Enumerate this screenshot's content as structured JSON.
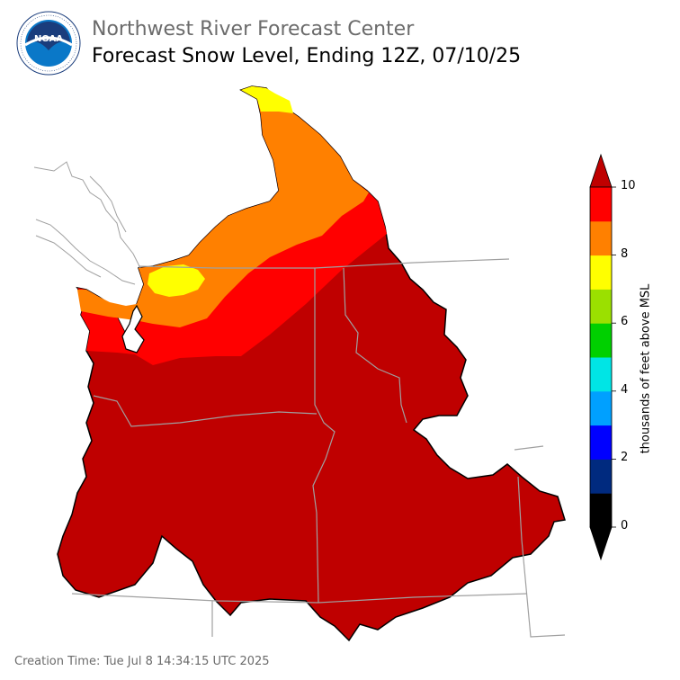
{
  "header": {
    "org": "Northwest River Forecast Center",
    "title": "Forecast Snow Level, Ending 12Z, 07/10/25"
  },
  "logo": {
    "text": "NOAA",
    "ring_text": "NATIONAL OCEANIC AND ATMOSPHERIC ADMINISTRATION · U.S. DEPARTMENT OF COMMERCE",
    "icon": "noaa-logo"
  },
  "colorbar": {
    "label": "thousands of feet above MSL",
    "ticks": [
      "0",
      "2",
      "4",
      "6",
      "8",
      "10"
    ],
    "colors": [
      "#000000",
      "#002a7f",
      "#0000ff",
      "#00a0ff",
      "#00e5e5",
      "#00d000",
      "#9be000",
      "#ffff00",
      "#ff8000",
      "#ff0000"
    ],
    "over_color": "#bf0000",
    "under_color": "#000000"
  },
  "map_colors": {
    "red_dark": "#bf0000",
    "red": "#ff0000",
    "orange": "#ff8000",
    "yellow": "#ffff00",
    "boundary": "#a0a0a0"
  },
  "footer": {
    "creation": "Creation Time: Tue Jul 8 14:34:15 UTC 2025"
  }
}
